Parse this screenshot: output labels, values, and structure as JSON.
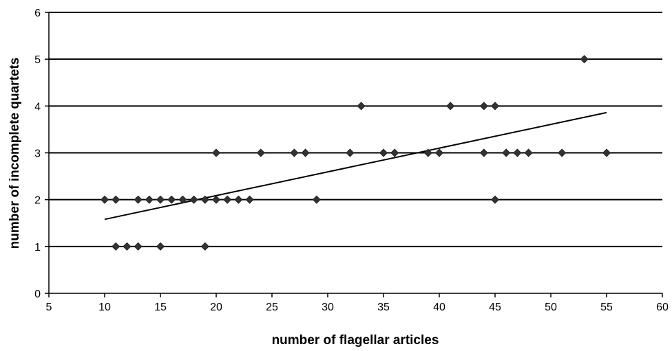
{
  "chart_data": {
    "type": "scatter",
    "title": "",
    "xlabel": "number of flagellar articles",
    "ylabel": "number of incomplete quartets",
    "xlim": [
      5,
      60
    ],
    "ylim": [
      0,
      6
    ],
    "xticks": [
      5,
      10,
      15,
      20,
      25,
      30,
      35,
      40,
      45,
      50,
      55,
      60
    ],
    "yticks": [
      0,
      1,
      2,
      3,
      4,
      5,
      6
    ],
    "grid": "horizontal",
    "legend": "none",
    "marker": "diamond",
    "marker_color": "#333333",
    "series": [
      {
        "points": [
          [
            10,
            2
          ],
          [
            11,
            2
          ],
          [
            11,
            1
          ],
          [
            12,
            1
          ],
          [
            13,
            2
          ],
          [
            13,
            1
          ],
          [
            14,
            2
          ],
          [
            15,
            2
          ],
          [
            15,
            1
          ],
          [
            16,
            2
          ],
          [
            17,
            2
          ],
          [
            18,
            2
          ],
          [
            19,
            2
          ],
          [
            19,
            1
          ],
          [
            20,
            2
          ],
          [
            20,
            3
          ],
          [
            21,
            2
          ],
          [
            22,
            2
          ],
          [
            23,
            2
          ],
          [
            24,
            3
          ],
          [
            27,
            3
          ],
          [
            28,
            3
          ],
          [
            29,
            2
          ],
          [
            32,
            3
          ],
          [
            33,
            4
          ],
          [
            35,
            3
          ],
          [
            36,
            3
          ],
          [
            39,
            3
          ],
          [
            40,
            3
          ],
          [
            41,
            4
          ],
          [
            44,
            4
          ],
          [
            44,
            3
          ],
          [
            45,
            4
          ],
          [
            45,
            2
          ],
          [
            46,
            3
          ],
          [
            47,
            3
          ],
          [
            48,
            3
          ],
          [
            51,
            3
          ],
          [
            53,
            5
          ],
          [
            55,
            3
          ]
        ]
      }
    ],
    "trendline": {
      "type": "linear",
      "x": [
        10,
        55
      ],
      "y": [
        1.58,
        3.86
      ]
    }
  }
}
